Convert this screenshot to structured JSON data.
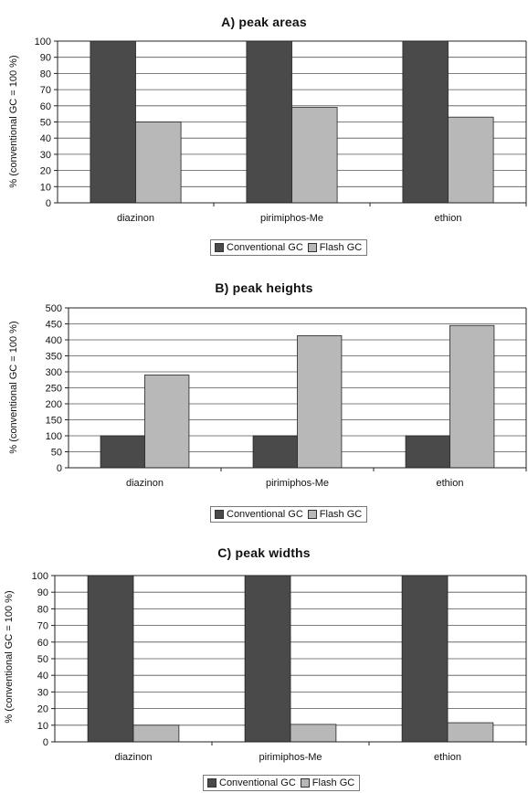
{
  "colors": {
    "conventional": "#4a4a4a",
    "flash": "#b8b8b8",
    "grid": "#555555",
    "axis": "#222222"
  },
  "chart_data": [
    {
      "type": "bar",
      "title": "A) peak areas",
      "ylabel": "% (conventional GC = 100 %)",
      "categories": [
        "diazinon",
        "pirimiphos-Me",
        "ethion"
      ],
      "series": [
        {
          "name": "Conventional GC",
          "values": [
            100,
            100,
            100
          ]
        },
        {
          "name": "Flash GC",
          "values": [
            50,
            59,
            53
          ]
        }
      ],
      "ylim": [
        0,
        100
      ],
      "yticks": [
        0,
        10,
        20,
        30,
        40,
        50,
        60,
        70,
        80,
        90,
        100
      ],
      "grid": true,
      "legend": "bottom"
    },
    {
      "type": "bar",
      "title": "B)  peak heights",
      "ylabel": "% (conventional GC = 100 %)",
      "categories": [
        "diazinon",
        "pirimiphos-Me",
        "ethion"
      ],
      "series": [
        {
          "name": "Conventional GC",
          "values": [
            100,
            100,
            100
          ]
        },
        {
          "name": "Flash GC",
          "values": [
            290,
            413,
            445
          ]
        }
      ],
      "ylim": [
        0,
        500
      ],
      "yticks": [
        0,
        50,
        100,
        150,
        200,
        250,
        300,
        350,
        400,
        450,
        500
      ],
      "grid": true,
      "legend": "bottom"
    },
    {
      "type": "bar",
      "title": "C) peak widths",
      "ylabel": "% (conventional GC = 100 %)",
      "categories": [
        "diazinon",
        "pirimiphos-Me",
        "ethion"
      ],
      "series": [
        {
          "name": "Conventional GC",
          "values": [
            100,
            100,
            100
          ]
        },
        {
          "name": "Flash GC",
          "values": [
            10,
            10.5,
            11.5
          ]
        }
      ],
      "ylim": [
        0,
        100
      ],
      "yticks": [
        0,
        10,
        20,
        30,
        40,
        50,
        60,
        70,
        80,
        90,
        100
      ],
      "grid": true,
      "legend": "bottom"
    }
  ]
}
